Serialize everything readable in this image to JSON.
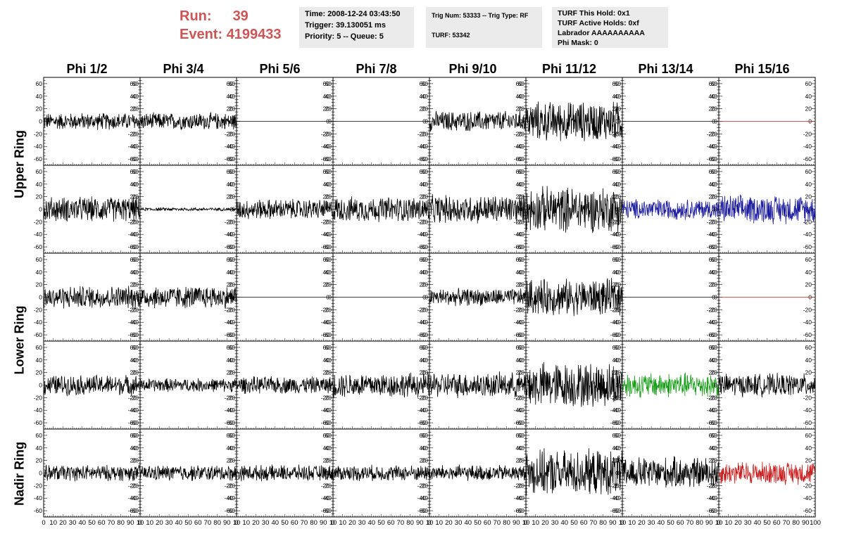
{
  "run_info": {
    "run_label": "Run:",
    "run_value": "39",
    "event_label": "Event:",
    "event_value": "4199433"
  },
  "time_box": {
    "time": "Time: 2008-12-24 03:43:50",
    "trigger": "Trigger: 39.130051 ms",
    "priority": "Priority: 5 -- Queue: 5"
  },
  "trig_box": {
    "trig": "Trig Num: 53333 -- Trig Type: RF",
    "turf": "TURF: 53342"
  },
  "turf_box": {
    "this_hold": "TURF This Hold: 0x1",
    "active_holds": "TURF Active Holds: 0xf",
    "labrador": "Labrador AAAAAAAAAA",
    "phi_mask": "Phi Mask: 0"
  },
  "colors": {
    "title_red": "#cc5555",
    "info_bg": "#ebebeb",
    "trace_black": "#000000",
    "trace_blue": "#1a1a9e",
    "trace_green": "#1a9e1a",
    "trace_red": "#c81e1e"
  },
  "chart_data": {
    "type": "line",
    "columns": [
      "Phi 1/2",
      "Phi 3/4",
      "Phi 5/6",
      "Phi 7/8",
      "Phi 9/10",
      "Phi 11/12",
      "Phi 13/14",
      "Phi 15/16"
    ],
    "rows": [
      "Upper Ring",
      "Lower Ring",
      "Nadir Ring"
    ],
    "ylim": [
      -70,
      70
    ],
    "y_ticks": [
      -60,
      -40,
      -20,
      0,
      20,
      40,
      60
    ],
    "xlim": [
      0,
      100
    ],
    "x_ticks_labels": [
      "0",
      "10",
      "20",
      "30",
      "40",
      "50",
      "60",
      "70",
      "80",
      "90",
      "100"
    ],
    "x_tick_label_strings": [
      "0 10 20 30 40 50 60 70 80 90 10",
      "0 10 20 30 40 50 60 70 80 90 10",
      "0 10 20 30 40 50 60 70 80 90 10",
      "0 10 20 30 40 50 60 70 80 90 10",
      "0 10 20 30 40 50 60 70 80 90 10",
      "0 10 20 30 40 50 60 70 80 90 10",
      "0 10 20 30 40 50 60 70 80 90 10",
      "0 10 20 30 40 50 60 70 80 90 100"
    ],
    "panel_rows": [
      {
        "amplitudes": [
          15,
          15,
          0,
          0,
          18,
          35,
          0,
          0
        ],
        "colors": [
          "trace_black",
          "trace_black",
          "trace_black",
          "trace_black",
          "trace_black",
          "trace_black",
          "trace_black",
          "trace_red"
        ]
      },
      {
        "amplitudes": [
          22,
          3,
          18,
          22,
          25,
          40,
          18,
          25
        ],
        "colors": [
          "trace_black",
          "trace_black",
          "trace_black",
          "trace_black",
          "trace_black",
          "trace_black",
          "trace_blue",
          "trace_blue"
        ]
      },
      {
        "amplitudes": [
          20,
          20,
          0,
          0,
          15,
          32,
          0,
          0
        ],
        "colors": [
          "trace_black",
          "trace_black",
          "trace_black",
          "trace_black",
          "trace_black",
          "trace_black",
          "trace_black",
          "trace_red"
        ]
      },
      {
        "amplitudes": [
          18,
          12,
          15,
          22,
          22,
          40,
          22,
          20
        ],
        "colors": [
          "trace_black",
          "trace_black",
          "trace_black",
          "trace_black",
          "trace_black",
          "trace_black",
          "trace_green",
          "trace_black"
        ]
      },
      {
        "amplitudes": [
          14,
          14,
          14,
          14,
          14,
          40,
          28,
          20
        ],
        "colors": [
          "trace_black",
          "trace_black",
          "trace_black",
          "trace_black",
          "trace_black",
          "trace_black",
          "trace_black",
          "trace_red"
        ]
      }
    ]
  }
}
